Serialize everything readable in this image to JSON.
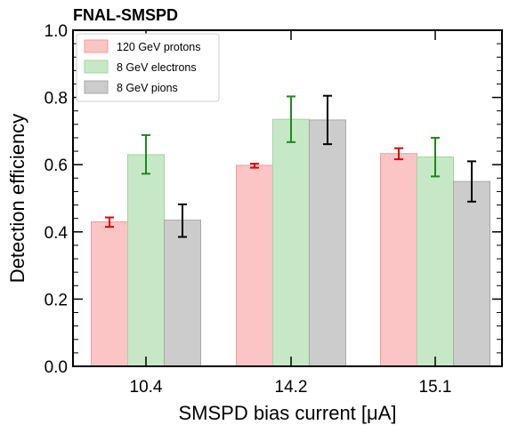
{
  "chart_data": {
    "type": "bar",
    "title": "FNAL-SMSPD",
    "xlabel": "SMSPD bias current [μA]",
    "ylabel": "Detection efficiency",
    "categories": [
      "10.4",
      "14.2",
      "15.1"
    ],
    "ylim": [
      0.0,
      1.0
    ],
    "yticks": [
      "0.0",
      "0.2",
      "0.4",
      "0.6",
      "0.8",
      "1.0"
    ],
    "grid": false,
    "legend_position": "top-left",
    "series": [
      {
        "name": "120 GeV protons",
        "values": [
          0.43,
          0.598,
          0.633
        ],
        "error_low": [
          0.015,
          0.007,
          0.017
        ],
        "error_high": [
          0.013,
          0.005,
          0.016
        ],
        "fill_color": "#fbc5c5",
        "edge_color": "#f19c9c",
        "error_color": "#e00000"
      },
      {
        "name": "8 GeV electrons",
        "values": [
          0.63,
          0.735,
          0.623
        ],
        "error_low": [
          0.057,
          0.068,
          0.058
        ],
        "error_high": [
          0.058,
          0.068,
          0.057
        ],
        "fill_color": "#c7e8c7",
        "edge_color": "#a3d4a3",
        "error_color": "#1a8a1a"
      },
      {
        "name": "8 GeV pions",
        "values": [
          0.435,
          0.733,
          0.55
        ],
        "error_low": [
          0.05,
          0.072,
          0.06
        ],
        "error_high": [
          0.047,
          0.072,
          0.06
        ],
        "fill_color": "#cccccc",
        "edge_color": "#a8a8a8",
        "error_color": "#000000"
      }
    ]
  }
}
